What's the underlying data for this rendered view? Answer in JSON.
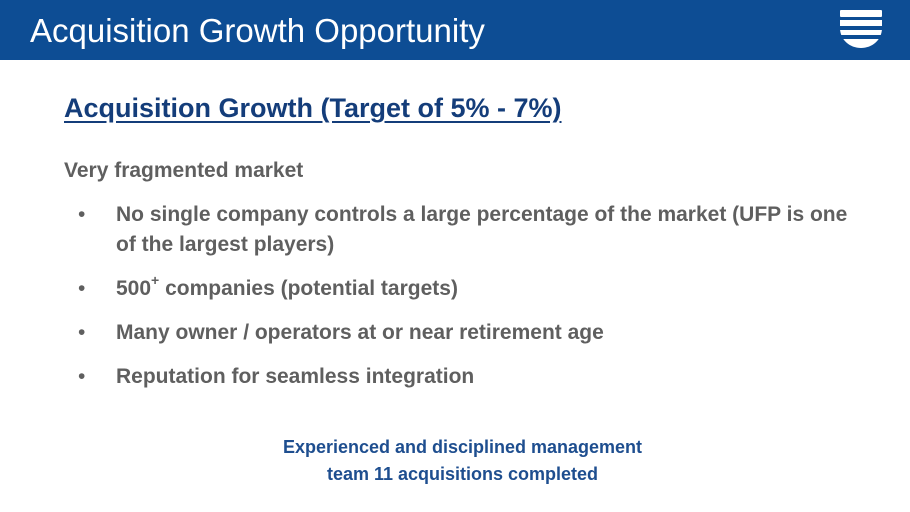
{
  "header": {
    "title": "Acquisition Growth Opportunity",
    "logo_icon": "ufp-logo-icon",
    "background_color": "#0d4d94"
  },
  "main": {
    "heading": "Acquisition Growth (Target of 5% - 7%)",
    "intro": "Very fragmented market",
    "bullets": [
      {
        "text": "No single company controls a large percentage of the market (UFP is one of the largest players)"
      },
      {
        "text_before": "500",
        "superscript": "+",
        "text_after": " companies (potential targets)"
      },
      {
        "text": "Many owner / operators at or near retirement age"
      },
      {
        "text": "Reputation for seamless integration"
      }
    ],
    "bullet_symbol": "•",
    "callout": {
      "line1": "Experienced and disciplined management",
      "line2": "team 11 acquisitions completed"
    }
  },
  "colors": {
    "heading": "#143d7a",
    "body_text": "#5f5f5f",
    "callout": "#1e4e8f"
  }
}
